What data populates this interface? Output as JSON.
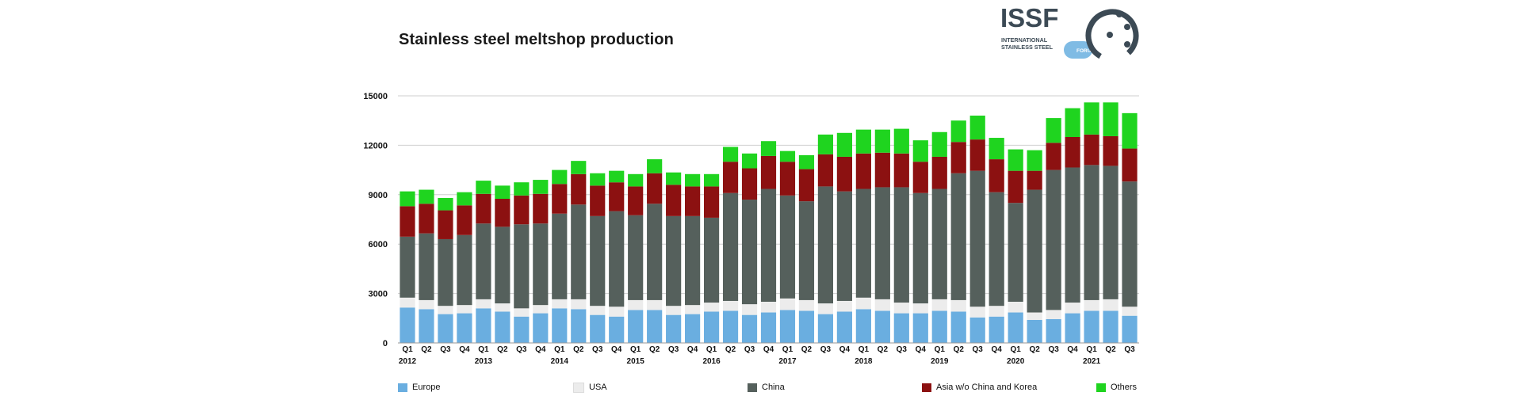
{
  "logo": {
    "brand": "ISSF",
    "line1": "INTERNATIONAL",
    "line2": "STAINLESS STEEL",
    "line3": "FORUM",
    "colors": {
      "dark": "#3c4a55",
      "light": "#7fbbe4"
    }
  },
  "chart_data": {
    "type": "bar",
    "stacked": true,
    "title": "Stainless steel meltshop production",
    "xlabel": "",
    "ylabel": "",
    "ylim": [
      0,
      15000
    ],
    "yticks": [
      "0",
      "3000",
      "6000",
      "9000",
      "12000",
      "15000"
    ],
    "grid": true,
    "legend_position": "bottom",
    "categories": [
      "Q1",
      "Q2",
      "Q3",
      "Q4",
      "Q1",
      "Q2",
      "Q3",
      "Q4",
      "Q1",
      "Q2",
      "Q3",
      "Q4",
      "Q1",
      "Q2",
      "Q3",
      "Q4",
      "Q1",
      "Q2",
      "Q3",
      "Q4",
      "Q1",
      "Q2",
      "Q3",
      "Q4",
      "Q1",
      "Q2",
      "Q3",
      "Q4",
      "Q1",
      "Q2",
      "Q3",
      "Q4",
      "Q1",
      "Q2",
      "Q3",
      "Q4",
      "Q1",
      "Q2",
      "Q3"
    ],
    "years": [
      {
        "label": "2012",
        "index": 0
      },
      {
        "label": "2013",
        "index": 4
      },
      {
        "label": "2014",
        "index": 8
      },
      {
        "label": "2015",
        "index": 12
      },
      {
        "label": "2016",
        "index": 16
      },
      {
        "label": "2017",
        "index": 20
      },
      {
        "label": "2018",
        "index": 24
      },
      {
        "label": "2019",
        "index": 28
      },
      {
        "label": "2020",
        "index": 32
      },
      {
        "label": "2021",
        "index": 36
      }
    ],
    "series": [
      {
        "name": "Europe",
        "color": "#6aaee0",
        "values": [
          2150,
          2050,
          1750,
          1800,
          2100,
          1900,
          1600,
          1800,
          2100,
          2050,
          1700,
          1600,
          2000,
          2000,
          1700,
          1750,
          1900,
          1950,
          1700,
          1850,
          2000,
          1950,
          1750,
          1900,
          2050,
          1950,
          1800,
          1800,
          1950,
          1900,
          1550,
          1600,
          1850,
          1400,
          1450,
          1800,
          1950,
          1950,
          1650
        ]
      },
      {
        "name": "USA",
        "color": "#ececec",
        "values": [
          600,
          550,
          500,
          500,
          550,
          500,
          500,
          500,
          550,
          600,
          550,
          600,
          600,
          600,
          550,
          550,
          550,
          600,
          650,
          650,
          700,
          650,
          650,
          650,
          700,
          700,
          650,
          600,
          700,
          700,
          650,
          650,
          650,
          450,
          550,
          650,
          650,
          700,
          550
        ]
      },
      {
        "name": "China",
        "color": "#55605c",
        "values": [
          3700,
          4050,
          4050,
          4250,
          4600,
          4650,
          5100,
          4950,
          5200,
          5750,
          5450,
          5800,
          5150,
          5850,
          5450,
          5400,
          5150,
          6550,
          6350,
          6850,
          6250,
          6000,
          7100,
          6650,
          6600,
          6800,
          7000,
          6700,
          6700,
          7700,
          8250,
          6900,
          6000,
          7450,
          8500,
          8200,
          8200,
          8100,
          7600
        ]
      },
      {
        "name": "Asia w/o China and Korea",
        "color": "#8c1111",
        "values": [
          1850,
          1800,
          1750,
          1800,
          1800,
          1700,
          1750,
          1800,
          1800,
          1850,
          1850,
          1750,
          1750,
          1850,
          1900,
          1800,
          1900,
          1900,
          1900,
          2000,
          2050,
          1950,
          1950,
          2100,
          2150,
          2100,
          2050,
          1900,
          1950,
          1900,
          1900,
          2000,
          1950,
          1150,
          1650,
          1850,
          1850,
          1800,
          2000
        ]
      },
      {
        "name": "Others",
        "color": "#1fd41f",
        "values": [
          900,
          850,
          750,
          800,
          800,
          800,
          800,
          850,
          850,
          800,
          750,
          700,
          750,
          850,
          750,
          750,
          750,
          900,
          900,
          900,
          650,
          850,
          1200,
          1450,
          1450,
          1400,
          1500,
          1300,
          1500,
          1300,
          1450,
          1300,
          1300,
          1250,
          1500,
          1750,
          1950,
          2050,
          2150
        ]
      }
    ]
  }
}
